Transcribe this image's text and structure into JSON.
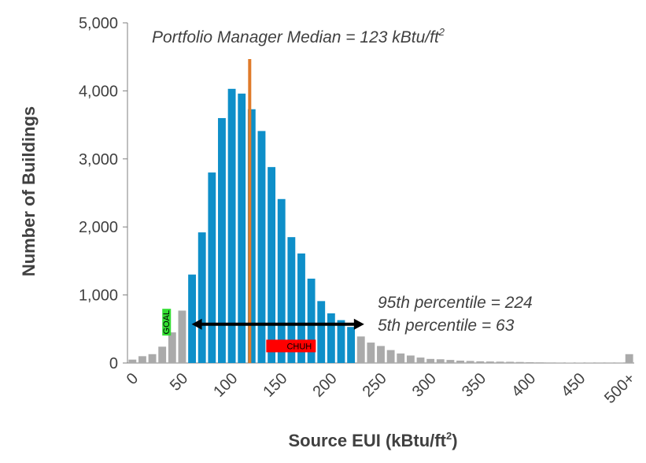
{
  "chart_data": {
    "type": "bar",
    "xlabel": "Source EUI (kBtu/ft",
    "xlabel_sup": "2",
    "xlabel_close": ")",
    "ylabel": "Number of Buildings",
    "ylim": [
      0,
      5000
    ],
    "yticks": [
      "0",
      "1,000",
      "2,000",
      "3,000",
      "4,000",
      "5,000"
    ],
    "ytick_values": [
      0,
      1000,
      2000,
      3000,
      4000,
      5000
    ],
    "xtick_labels": [
      "0",
      "50",
      "100",
      "150",
      "200",
      "250",
      "300",
      "350",
      "400",
      "450",
      "500+"
    ],
    "xtick_values": [
      0,
      50,
      100,
      150,
      200,
      250,
      300,
      350,
      400,
      450,
      500
    ],
    "bin_width": 10,
    "bins": [
      0,
      10,
      20,
      30,
      40,
      50,
      60,
      70,
      80,
      90,
      100,
      110,
      120,
      130,
      140,
      150,
      160,
      170,
      180,
      190,
      200,
      210,
      220,
      230,
      240,
      250,
      260,
      270,
      280,
      290,
      300,
      310,
      320,
      330,
      340,
      350,
      360,
      370,
      380,
      390,
      400,
      410,
      420,
      430,
      440,
      450,
      460,
      470,
      480,
      490,
      500
    ],
    "values": [
      50,
      100,
      130,
      240,
      450,
      770,
      1300,
      1920,
      2800,
      3600,
      4030,
      3960,
      3730,
      3410,
      2880,
      2410,
      1850,
      1610,
      1240,
      910,
      730,
      630,
      530,
      390,
      300,
      250,
      190,
      140,
      110,
      80,
      60,
      55,
      45,
      35,
      30,
      25,
      22,
      20,
      18,
      15,
      12,
      10,
      8,
      7,
      6,
      5,
      4,
      3,
      3,
      3,
      130
    ],
    "highlight_range": [
      60,
      230
    ],
    "colors": {
      "highlight": "#0e8fc9",
      "other": "#aaaaaa",
      "median": "#e07b2a",
      "arrow": "#000000",
      "goal": "#33dd33",
      "chuh": "#ff0000"
    },
    "median": {
      "value": 123,
      "label": "Portfolio Manager Median = 123 kBtu/ft",
      "label_sup": "2"
    },
    "percentiles": {
      "p95_label": "95th percentile = 224",
      "p5_label": "5th percentile = 63",
      "p5": 63,
      "p95": 224
    },
    "markers": [
      {
        "label": "GOAL",
        "x": 39,
        "y": 600
      },
      {
        "label": "CHUH",
        "x": 165,
        "y": 250
      }
    ]
  }
}
